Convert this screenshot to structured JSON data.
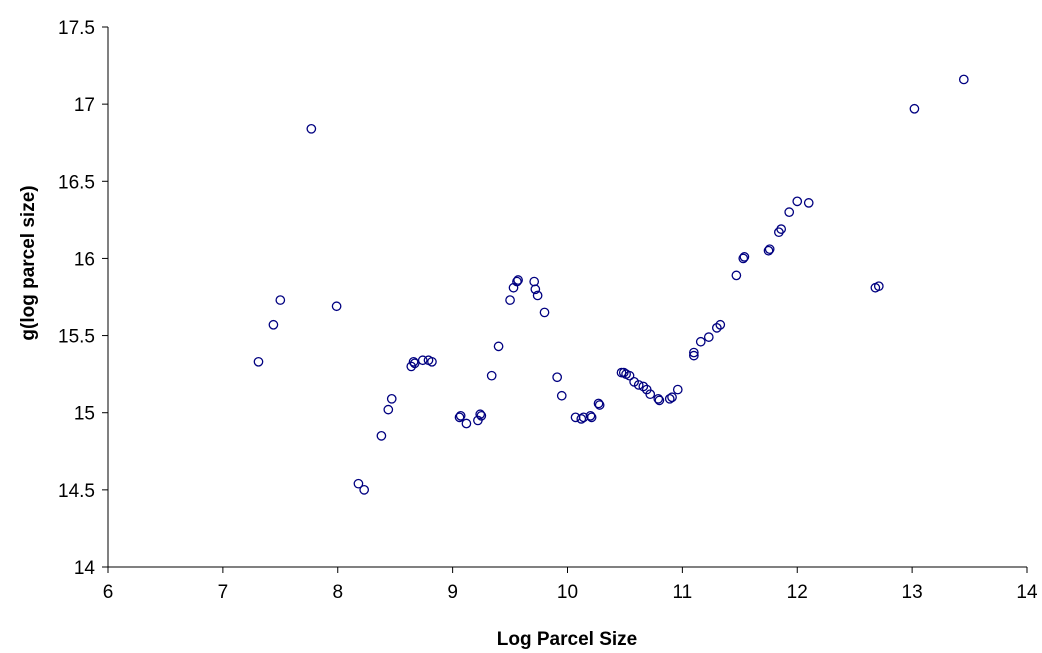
{
  "chart_data": {
    "type": "scatter",
    "xlabel": "Log Parcel Size",
    "ylabel": "g(log parcel size)",
    "xlim": [
      6,
      14
    ],
    "ylim": [
      14,
      17.5
    ],
    "xticks": [
      6,
      7,
      8,
      9,
      10,
      11,
      12,
      13,
      14
    ],
    "yticks": [
      14,
      14.5,
      15,
      15.5,
      16,
      16.5,
      17,
      17.5
    ],
    "xtick_labels": [
      "6",
      "7",
      "8",
      "9",
      "10",
      "11",
      "12",
      "13",
      "14"
    ],
    "ytick_labels": [
      "14",
      "14.5",
      "15",
      "15.5",
      "16",
      "16.5",
      "17",
      "17.5"
    ],
    "grid": false,
    "marker_color": "#000080",
    "series": [
      {
        "points": [
          [
            7.31,
            15.33
          ],
          [
            7.44,
            15.57
          ],
          [
            7.5,
            15.73
          ],
          [
            7.77,
            16.84
          ],
          [
            7.99,
            15.69
          ],
          [
            8.18,
            14.54
          ],
          [
            8.23,
            14.5
          ],
          [
            8.38,
            14.85
          ],
          [
            8.44,
            15.02
          ],
          [
            8.47,
            15.09
          ],
          [
            8.64,
            15.3
          ],
          [
            8.66,
            15.33
          ],
          [
            8.67,
            15.32
          ],
          [
            8.74,
            15.34
          ],
          [
            8.79,
            15.34
          ],
          [
            8.82,
            15.33
          ],
          [
            9.06,
            14.97
          ],
          [
            9.07,
            14.98
          ],
          [
            9.12,
            14.93
          ],
          [
            9.22,
            14.95
          ],
          [
            9.24,
            14.99
          ],
          [
            9.25,
            14.98
          ],
          [
            9.34,
            15.24
          ],
          [
            9.4,
            15.43
          ],
          [
            9.5,
            15.73
          ],
          [
            9.53,
            15.81
          ],
          [
            9.56,
            15.85
          ],
          [
            9.57,
            15.86
          ],
          [
            9.71,
            15.85
          ],
          [
            9.72,
            15.8
          ],
          [
            9.74,
            15.76
          ],
          [
            9.8,
            15.65
          ],
          [
            9.91,
            15.23
          ],
          [
            9.95,
            15.11
          ],
          [
            10.07,
            14.97
          ],
          [
            10.12,
            14.96
          ],
          [
            10.14,
            14.97
          ],
          [
            10.2,
            14.98
          ],
          [
            10.21,
            14.97
          ],
          [
            10.27,
            15.06
          ],
          [
            10.28,
            15.05
          ],
          [
            10.47,
            15.26
          ],
          [
            10.49,
            15.26
          ],
          [
            10.51,
            15.25
          ],
          [
            10.54,
            15.24
          ],
          [
            10.58,
            15.2
          ],
          [
            10.62,
            15.18
          ],
          [
            10.66,
            15.17
          ],
          [
            10.69,
            15.15
          ],
          [
            10.72,
            15.12
          ],
          [
            10.79,
            15.09
          ],
          [
            10.8,
            15.08
          ],
          [
            10.89,
            15.09
          ],
          [
            10.91,
            15.1
          ],
          [
            10.96,
            15.15
          ],
          [
            11.1,
            15.37
          ],
          [
            11.1,
            15.39
          ],
          [
            11.16,
            15.46
          ],
          [
            11.23,
            15.49
          ],
          [
            11.3,
            15.55
          ],
          [
            11.33,
            15.57
          ],
          [
            11.47,
            15.89
          ],
          [
            11.53,
            16.0
          ],
          [
            11.54,
            16.01
          ],
          [
            11.75,
            16.05
          ],
          [
            11.76,
            16.06
          ],
          [
            11.84,
            16.17
          ],
          [
            11.86,
            16.19
          ],
          [
            11.93,
            16.3
          ],
          [
            12.0,
            16.37
          ],
          [
            12.1,
            16.36
          ],
          [
            12.68,
            15.81
          ],
          [
            12.71,
            15.82
          ],
          [
            13.02,
            16.97
          ],
          [
            13.45,
            17.16
          ]
        ]
      }
    ]
  }
}
